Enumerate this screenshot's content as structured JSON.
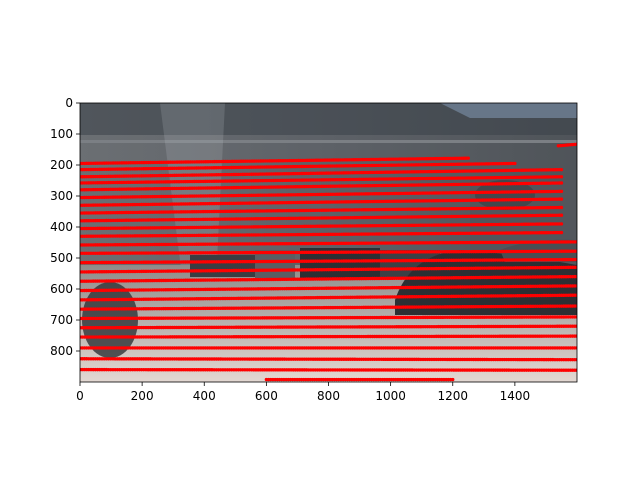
{
  "chart_data": {
    "type": "scatter",
    "title": "",
    "xlabel": "",
    "ylabel": "",
    "background": "camera photo (street scene: building facade, parked cars, sky at top-right)",
    "xlim": [
      0,
      1600
    ],
    "ylim": [
      900,
      0
    ],
    "y_inverted": true,
    "grid": false,
    "legend": "none",
    "x_ticks": [
      "0",
      "200",
      "400",
      "600",
      "800",
      "1000",
      "1200",
      "1400"
    ],
    "x_tick_values": [
      0,
      200,
      400,
      600,
      800,
      1000,
      1200,
      1400
    ],
    "y_ticks": [
      "0",
      "100",
      "200",
      "300",
      "400",
      "500",
      "600",
      "700",
      "800"
    ],
    "y_tick_values": [
      0,
      100,
      200,
      300,
      400,
      500,
      600,
      700,
      800
    ],
    "marker_color": "#ff0000",
    "series": [
      {
        "description": "projected lidar scan lines (red points), nearly horizontal bands",
        "lines": [
          {
            "x": [
              0,
              1250
            ],
            "y": [
              195,
              178
            ]
          },
          {
            "x": [
              0,
              1400
            ],
            "y": [
              215,
              195
            ]
          },
          {
            "x": [
              0,
              1550
            ],
            "y": [
              238,
              215
            ]
          },
          {
            "x": [
              0,
              1550
            ],
            "y": [
              258,
              238
            ]
          },
          {
            "x": [
              0,
              1550
            ],
            "y": [
              280,
              258
            ]
          },
          {
            "x": [
              0,
              1550
            ],
            "y": [
              305,
              285
            ]
          },
          {
            "x": [
              0,
              1550
            ],
            "y": [
              330,
              310
            ]
          },
          {
            "x": [
              0,
              1550
            ],
            "y": [
              355,
              337
            ]
          },
          {
            "x": [
              0,
              1550
            ],
            "y": [
              380,
              362
            ]
          },
          {
            "x": [
              0,
              1550
            ],
            "y": [
              405,
              390
            ]
          },
          {
            "x": [
              0,
              1550
            ],
            "y": [
              430,
              418
            ]
          },
          {
            "x": [
              0,
              1600
            ],
            "y": [
              458,
              448
            ]
          },
          {
            "x": [
              0,
              1600
            ],
            "y": [
              485,
              478
            ]
          },
          {
            "x": [
              0,
              1600
            ],
            "y": [
              515,
              505
            ]
          },
          {
            "x": [
              0,
              1600
            ],
            "y": [
              545,
              530
            ]
          },
          {
            "x": [
              0,
              1600
            ],
            "y": [
              575,
              560
            ]
          },
          {
            "x": [
              0,
              1600
            ],
            "y": [
              605,
              590
            ]
          },
          {
            "x": [
              0,
              1600
            ],
            "y": [
              635,
              620
            ]
          },
          {
            "x": [
              0,
              1600
            ],
            "y": [
              665,
              655
            ]
          },
          {
            "x": [
              0,
              1600
            ],
            "y": [
              695,
              690
            ]
          },
          {
            "x": [
              0,
              1600
            ],
            "y": [
              725,
              720
            ]
          },
          {
            "x": [
              0,
              1600
            ],
            "y": [
              755,
              752
            ]
          },
          {
            "x": [
              0,
              1600
            ],
            "y": [
              790,
              790
            ]
          },
          {
            "x": [
              0,
              1600
            ],
            "y": [
              825,
              828
            ]
          },
          {
            "x": [
              0,
              1600
            ],
            "y": [
              860,
              862
            ]
          },
          {
            "x": [
              600,
              1200
            ],
            "y": [
              892,
              892
            ]
          },
          {
            "x": [
              1540,
              1600
            ],
            "y": [
              138,
              133
            ]
          }
        ]
      }
    ],
    "colors": {
      "sky": "#9eb6d6",
      "facade": "#5b6066",
      "windows": "#30373d",
      "ground": "#cfc6c0",
      "car_dark": "#2c2f33",
      "points": "#ff0000"
    }
  }
}
